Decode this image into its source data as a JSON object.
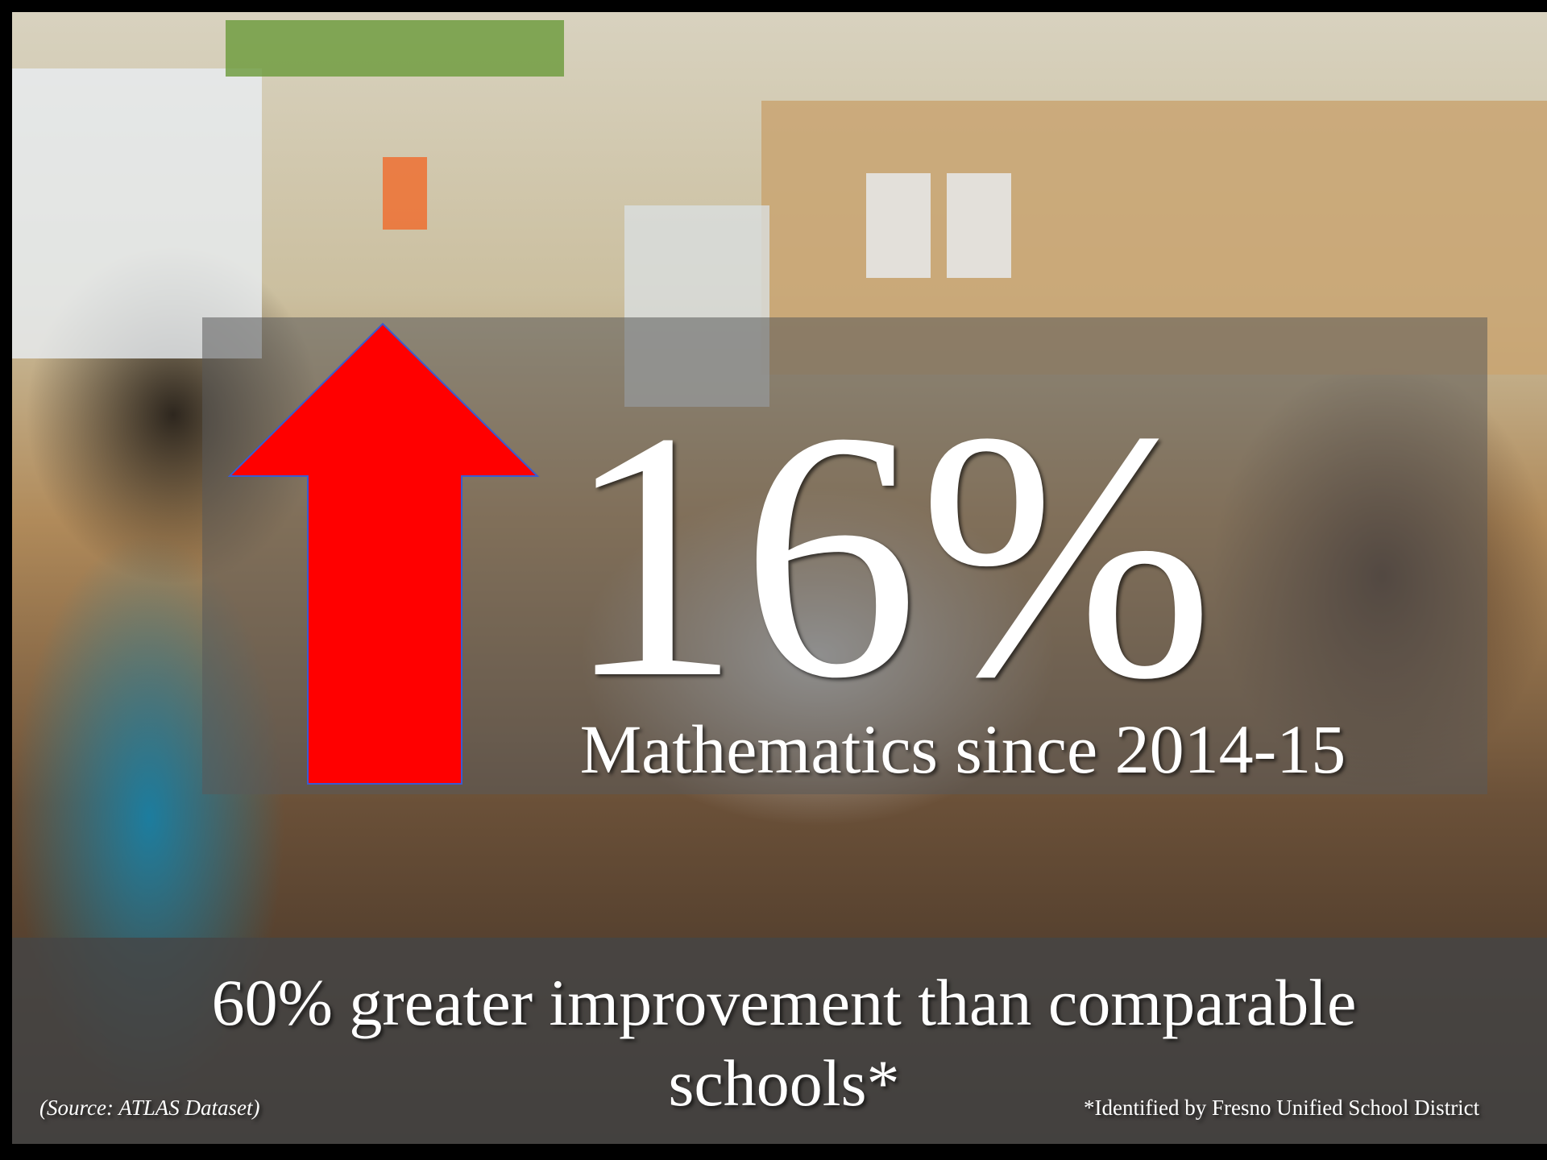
{
  "slide": {
    "headline": "16%",
    "subtitle": "Mathematics since 2014-15",
    "statement": "60% greater improvement than comparable schools*",
    "source": "(Source: ATLAS Dataset)",
    "footnote": "*Identified by Fresno Unified School District"
  }
}
